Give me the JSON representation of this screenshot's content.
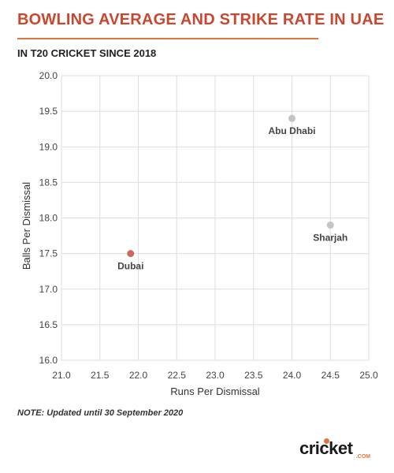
{
  "header": {
    "title": "BOWLING AVERAGE AND STRIKE RATE IN UAE",
    "subtitle": "IN T20 CRICKET SINCE 2018"
  },
  "note": "NOTE: Updated until 30 September 2020",
  "logo": {
    "main": "cricket",
    "sub": ".COM"
  },
  "colors": {
    "title": "#c9472f",
    "highlight_point": "#cc6a5a",
    "other_point": "#c4c4c4",
    "grid": "#dedede",
    "accent": "#e0763f"
  },
  "chart_data": {
    "type": "scatter",
    "title": "BOWLING AVERAGE AND STRIKE RATE IN UAE",
    "subtitle": "IN T20 CRICKET SINCE 2018",
    "xlabel": "Runs Per Dismissal",
    "ylabel": "Balls Per Dismissal",
    "xlim": [
      21.0,
      25.0
    ],
    "ylim": [
      16.0,
      20.0
    ],
    "xticks": [
      "21.0",
      "21.5",
      "22.0",
      "22.5",
      "23.0",
      "23.5",
      "24.0",
      "24.5",
      "25.0"
    ],
    "yticks": [
      "16.0",
      "16.5",
      "17.0",
      "17.5",
      "18.0",
      "18.5",
      "19.0",
      "19.5",
      "20.0"
    ],
    "grid": true,
    "points": [
      {
        "label": "Dubai",
        "x": 21.9,
        "y": 17.5,
        "highlight": true
      },
      {
        "label": "Abu Dhabi",
        "x": 24.0,
        "y": 19.4,
        "highlight": false
      },
      {
        "label": "Sharjah",
        "x": 24.5,
        "y": 17.9,
        "highlight": false
      }
    ]
  }
}
